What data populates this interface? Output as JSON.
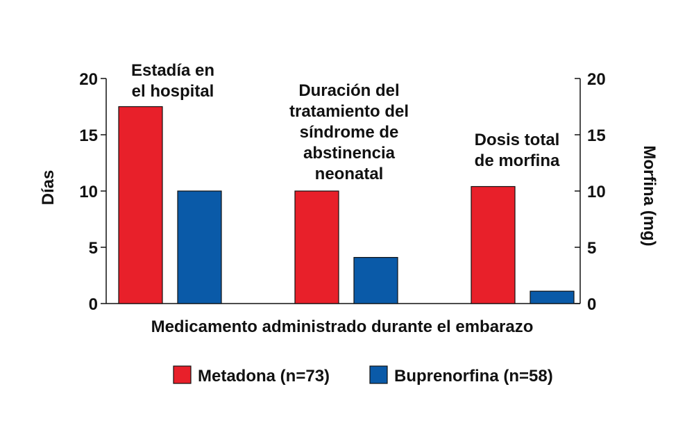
{
  "chart_data": {
    "type": "bar",
    "categories": [
      "Estadía en el hospital",
      "Duración del tratamiento del síndrome de abstinencia neonatal",
      "Dosis total de morfina"
    ],
    "category_label_lines": [
      [
        "Estadía en",
        "el hospital"
      ],
      [
        "Duración del",
        "tratamiento del",
        "síndrome de",
        "abstinencia",
        "neonatal"
      ],
      [
        "Dosis total",
        "de morfina"
      ]
    ],
    "series": [
      {
        "name": "Metadona (n=73)",
        "color": "#e8202a",
        "values": [
          17.5,
          10,
          10.4
        ]
      },
      {
        "name": "Buprenorfina (n=58)",
        "color": "#0a5aa8",
        "values": [
          10,
          4.1,
          1.1
        ]
      }
    ],
    "xlabel": "Medicamento administrado durante el embarazo",
    "ylabel_left": "Días",
    "ylabel_right": "Morfina (mg)",
    "ylim": [
      0,
      20
    ],
    "yticks": [
      0,
      5,
      10,
      15,
      20
    ],
    "grid": false,
    "legend_position": "bottom"
  }
}
